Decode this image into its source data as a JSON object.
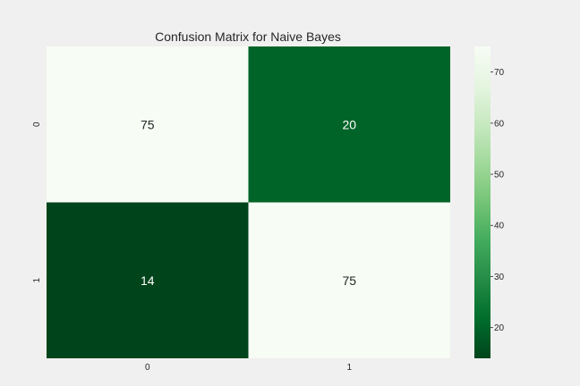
{
  "chart_data": {
    "type": "heatmap",
    "title": "Confusion Matrix for Naive Bayes",
    "xlabel": "",
    "ylabel": "",
    "x_categories": [
      "0",
      "1"
    ],
    "y_categories": [
      "0",
      "1"
    ],
    "values": [
      [
        75,
        20
      ],
      [
        14,
        75
      ]
    ],
    "colormap": "Greens_r",
    "color_range": [
      14,
      75
    ],
    "colorbar_ticks": [
      20,
      30,
      40,
      50,
      60,
      70
    ],
    "colorbar_tick_labels": [
      "20",
      "30",
      "40",
      "50",
      "60",
      "70"
    ],
    "colors": {
      "low": "#00441b",
      "high": "#f7fcf5",
      "text_on_dark": "#ffffff",
      "text_on_light": "#262626",
      "background": "#f0f0f0"
    },
    "grid": false,
    "legend": "none"
  }
}
